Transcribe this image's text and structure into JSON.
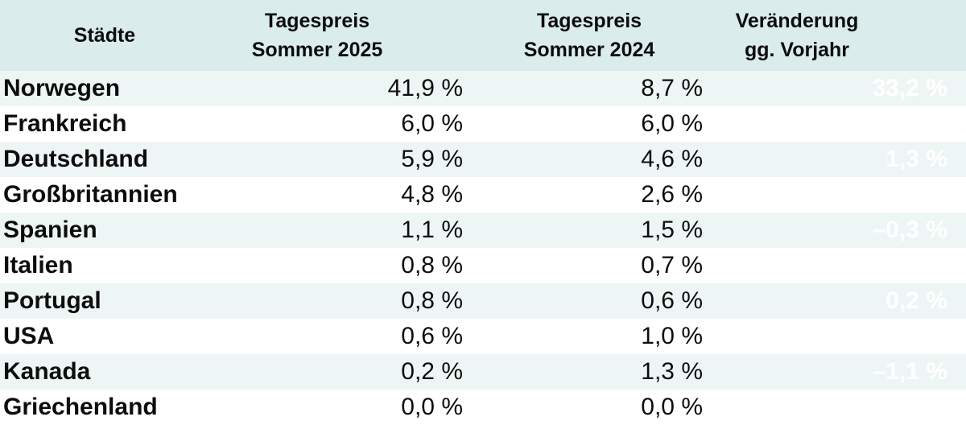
{
  "header": {
    "col1": "Städte",
    "col2_line1": "Tagespreis",
    "col2_line2": "Sommer 2025",
    "col3_line1": "Tagespreis",
    "col3_line2": "Sommer 2024",
    "col4_line1": "Veränderung",
    "col4_line2": "gg. Vorjahr"
  },
  "rows": [
    {
      "country": "Norwegen",
      "price_2025": "41,9 %",
      "price_2024": "8,7 %",
      "change": "33,2 %"
    },
    {
      "country": "Frankreich",
      "price_2025": "6,0 %",
      "price_2024": "6,0 %",
      "change": ""
    },
    {
      "country": "Deutschland",
      "price_2025": "5,9 %",
      "price_2024": "4,6 %",
      "change": "1,3 %"
    },
    {
      "country": "Großbritannien",
      "price_2025": "4,8 %",
      "price_2024": "2,6 %",
      "change": ""
    },
    {
      "country": "Spanien",
      "price_2025": "1,1 %",
      "price_2024": "1,5 %",
      "change": "–0,3 %"
    },
    {
      "country": "Italien",
      "price_2025": "0,8 %",
      "price_2024": "0,7 %",
      "change": ""
    },
    {
      "country": "Portugal",
      "price_2025": "0,8 %",
      "price_2024": "0,6 %",
      "change": "0,2 %"
    },
    {
      "country": "USA",
      "price_2025": "0,6 %",
      "price_2024": "1,0 %",
      "change": ""
    },
    {
      "country": "Kanada",
      "price_2025": "0,2 %",
      "price_2024": "1,3 %",
      "change": "–1,1 %"
    },
    {
      "country": "Griechenland",
      "price_2025": "0,0 %",
      "price_2024": "0,0 %",
      "change": ""
    }
  ],
  "colors": {
    "header_bg": "#daeceb",
    "row_tint_bg": "#eef6f5",
    "row_white_bg": "#ffffff",
    "text": "#0d0d0d",
    "change_text": "#ffffff"
  },
  "chart_data": {
    "type": "table",
    "title": "",
    "columns": [
      "Städte",
      "Tagespreis Sommer 2025",
      "Tagespreis Sommer 2024",
      "Veränderung gg. Vorjahr"
    ],
    "rows": [
      [
        "Norwegen",
        "41,9 %",
        "8,7 %",
        "33,2 %"
      ],
      [
        "Frankreich",
        "6,0 %",
        "6,0 %",
        ""
      ],
      [
        "Deutschland",
        "5,9 %",
        "4,6 %",
        "1,3 %"
      ],
      [
        "Großbritannien",
        "4,8 %",
        "2,6 %",
        ""
      ],
      [
        "Spanien",
        "1,1 %",
        "1,5 %",
        "–0,3 %"
      ],
      [
        "Italien",
        "0,8 %",
        "0,7 %",
        ""
      ],
      [
        "Portugal",
        "0,8 %",
        "0,6 %",
        "0,2 %"
      ],
      [
        "USA",
        "0,6 %",
        "1,0 %",
        ""
      ],
      [
        "Kanada",
        "0,2 %",
        "1,3 %",
        "–1,1 %"
      ],
      [
        "Griechenland",
        "0,0 %",
        "0,0 %",
        ""
      ]
    ],
    "notes": "Veränderung column rendered in white; values only visible on tinted rows. Rows alternate tinted/white starting tinted."
  }
}
